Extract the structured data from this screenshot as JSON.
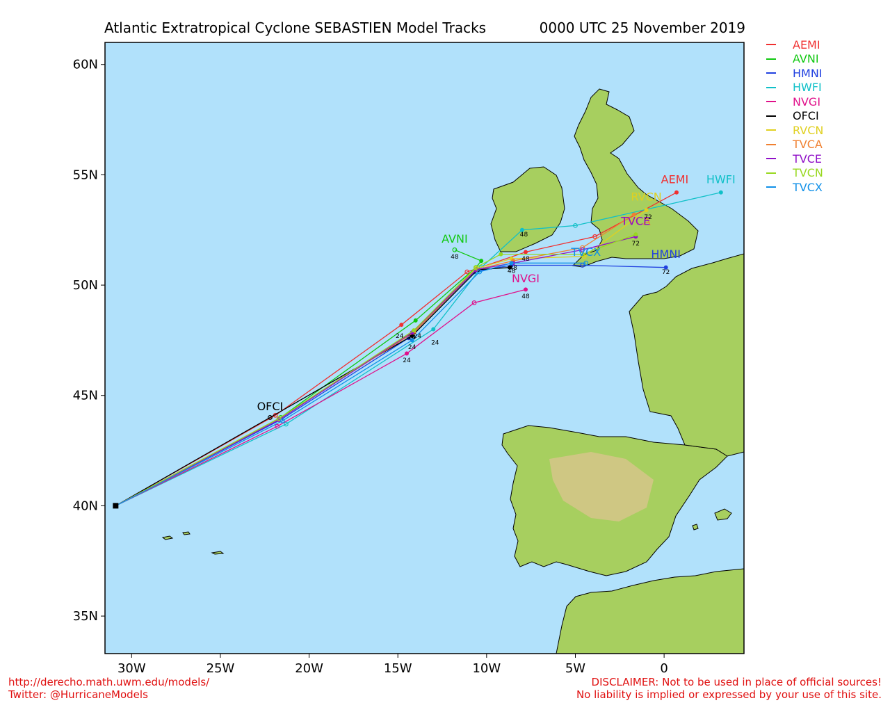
{
  "title": "Atlantic Extratropical Cyclone SEBASTIEN Model Tracks",
  "datetime": "0000 UTC 25 November 2019",
  "footer": {
    "left_line1": "http://derecho.math.uwm.edu/models/",
    "left_line2": "Twitter: @HurricaneModels",
    "right_line1": "DISCLAIMER: Not to be used in place of official sources!",
    "right_line2": "No liability is implied or expressed by your use of this site."
  },
  "colors": {
    "ocean": "#b1e1fb",
    "land": "#a7cf5f",
    "land_dark": "#7fb64a",
    "highland": "#d6c58a"
  },
  "legend": [
    {
      "label": "AEMI",
      "color": "#f03030"
    },
    {
      "label": "AVNI",
      "color": "#10c810"
    },
    {
      "label": "HMNI",
      "color": "#2040e0"
    },
    {
      "label": "HWFI",
      "color": "#10c0c8"
    },
    {
      "label": "NVGI",
      "color": "#e0108a"
    },
    {
      "label": "OFCI",
      "color": "#000000"
    },
    {
      "label": "RVCN",
      "color": "#e0d020"
    },
    {
      "label": "TVCA",
      "color": "#f08030"
    },
    {
      "label": "TVCE",
      "color": "#9010c8"
    },
    {
      "label": "TVCN",
      "color": "#98d820"
    },
    {
      "label": "TVCX",
      "color": "#1090e8"
    }
  ],
  "chart_data": {
    "type": "map",
    "xlim": [
      -31.5,
      4.5
    ],
    "ylim": [
      33.3,
      61
    ],
    "x_ticks": [
      {
        "value": -30,
        "label": "30W"
      },
      {
        "value": -25,
        "label": "25W"
      },
      {
        "value": -20,
        "label": "20W"
      },
      {
        "value": -15,
        "label": "15W"
      },
      {
        "value": -10,
        "label": "10W"
      },
      {
        "value": -5,
        "label": "5W"
      },
      {
        "value": 0,
        "label": "0"
      }
    ],
    "y_ticks": [
      {
        "value": 60,
        "label": "60N"
      },
      {
        "value": 55,
        "label": "55N"
      },
      {
        "value": 50,
        "label": "50N"
      },
      {
        "value": 45,
        "label": "45N"
      },
      {
        "value": 40,
        "label": "40N"
      },
      {
        "value": 35,
        "label": "35N"
      }
    ],
    "start": {
      "lon": -30.9,
      "lat": 40.0
    },
    "tracks": [
      {
        "name": "AEMI",
        "color": "#f03030",
        "points": [
          [
            -30.9,
            40.0
          ],
          [
            -21.9,
            44.1
          ],
          [
            -14.8,
            48.2
          ],
          [
            -11.1,
            50.6
          ],
          [
            -7.8,
            51.5
          ],
          [
            -3.9,
            52.2
          ],
          [
            0.7,
            54.2
          ]
        ],
        "label_pos": [
          0.6,
          54.5
        ]
      },
      {
        "name": "AVNI",
        "color": "#10c810",
        "points": [
          [
            -30.9,
            40.0
          ],
          [
            -21.6,
            44.0
          ],
          [
            -14.0,
            48.4
          ],
          [
            -10.6,
            50.8
          ],
          [
            -10.3,
            51.1
          ],
          [
            -11.8,
            51.6
          ]
        ],
        "label_pos": [
          -11.8,
          51.8
        ]
      },
      {
        "name": "HMNI",
        "color": "#2040e0",
        "points": [
          [
            -30.9,
            40.0
          ],
          [
            -21.6,
            43.9
          ],
          [
            -14.4,
            47.6
          ],
          [
            -10.7,
            50.6
          ],
          [
            -8.6,
            50.9
          ],
          [
            -4.6,
            50.9
          ],
          [
            0.1,
            50.8
          ]
        ],
        "label_pos": [
          0.1,
          51.1
        ]
      },
      {
        "name": "HWFI",
        "color": "#10c0c8",
        "points": [
          [
            -30.9,
            40.0
          ],
          [
            -21.3,
            43.7
          ],
          [
            -13.0,
            48.0
          ],
          [
            -10.3,
            50.8
          ],
          [
            -8.0,
            52.5
          ],
          [
            -5.0,
            52.7
          ],
          [
            3.2,
            54.2
          ]
        ],
        "label_pos": [
          3.2,
          54.5
        ]
      },
      {
        "name": "NVGI",
        "color": "#e0108a",
        "points": [
          [
            -30.9,
            40.0
          ],
          [
            -21.8,
            43.6
          ],
          [
            -14.5,
            46.9
          ],
          [
            -10.7,
            49.2
          ],
          [
            -7.8,
            49.8
          ]
        ],
        "label_pos": [
          -7.8,
          50.0
        ]
      },
      {
        "name": "OFCI",
        "color": "#000000",
        "points": [
          [
            -30.9,
            40.0
          ],
          [
            -22.2,
            44.0
          ],
          [
            -14.2,
            47.7
          ],
          [
            -10.5,
            50.7
          ],
          [
            -8.7,
            50.8
          ]
        ],
        "label_pos": [
          -22.2,
          44.2
        ]
      },
      {
        "name": "RVCN",
        "color": "#e0d020",
        "points": [
          [
            -30.9,
            40.0
          ],
          [
            -21.7,
            43.95
          ],
          [
            -14.1,
            47.9
          ],
          [
            -10.6,
            50.75
          ],
          [
            -8.6,
            51.2
          ],
          [
            -4.5,
            51.3
          ],
          [
            -1.0,
            53.4
          ]
        ],
        "label_pos": [
          -1.0,
          53.7
        ]
      },
      {
        "name": "TVCA",
        "color": "#f08030",
        "points": [
          [
            -30.9,
            40.0
          ],
          [
            -21.7,
            43.95
          ],
          [
            -14.1,
            47.85
          ],
          [
            -10.6,
            50.7
          ],
          [
            -8.5,
            51.1
          ],
          [
            -4.6,
            51.7
          ],
          [
            -1.7,
            53.2
          ]
        ],
        "label_pos": [
          -1.6,
          52.6
        ]
      },
      {
        "name": "TVCE",
        "color": "#9010c8",
        "points": [
          [
            -30.9,
            40.0
          ],
          [
            -21.7,
            43.9
          ],
          [
            -14.2,
            47.85
          ],
          [
            -10.6,
            50.7
          ],
          [
            -8.5,
            51.0
          ],
          [
            -4.6,
            51.6
          ],
          [
            -1.6,
            52.2
          ]
        ],
        "label_pos": [
          -1.6,
          52.6
        ]
      },
      {
        "name": "TVCN",
        "color": "#98d820",
        "points": [
          [
            -30.9,
            40.0
          ],
          [
            -21.7,
            43.95
          ],
          [
            -14.1,
            47.95
          ],
          [
            -10.6,
            50.8
          ],
          [
            -9.2,
            51.4
          ],
          [
            -4.6,
            51.4
          ],
          [
            -1.6,
            52.3
          ]
        ],
        "label_pos": [
          -1.6,
          52.6
        ]
      },
      {
        "name": "TVCX",
        "color": "#1090e8",
        "points": [
          [
            -30.9,
            40.0
          ],
          [
            -21.5,
            43.85
          ],
          [
            -14.2,
            47.5
          ],
          [
            -10.4,
            50.6
          ],
          [
            -8.6,
            51.0
          ],
          [
            -4.4,
            51.0
          ]
        ],
        "label_pos": [
          -4.4,
          51.2
        ]
      }
    ],
    "hour_labels": [
      {
        "text": "24",
        "lon": -14.9,
        "lat": 47.6
      },
      {
        "text": "24",
        "lon": -14.2,
        "lat": 47.55
      },
      {
        "text": "24",
        "lon": -13.9,
        "lat": 47.6
      },
      {
        "text": "24",
        "lon": -14.2,
        "lat": 47.1
      },
      {
        "text": "24",
        "lon": -12.9,
        "lat": 47.3
      },
      {
        "text": "24",
        "lon": -14.5,
        "lat": 46.5
      },
      {
        "text": "48",
        "lon": -11.8,
        "lat": 51.2
      },
      {
        "text": "48",
        "lon": -7.9,
        "lat": 52.2
      },
      {
        "text": "48",
        "lon": -7.8,
        "lat": 51.1
      },
      {
        "text": "48",
        "lon": -8.5,
        "lat": 50.7
      },
      {
        "text": "48",
        "lon": -8.6,
        "lat": 50.55
      },
      {
        "text": "48",
        "lon": -7.8,
        "lat": 49.4
      },
      {
        "text": "72",
        "lon": -0.9,
        "lat": 53.0
      },
      {
        "text": "72",
        "lon": -1.6,
        "lat": 51.8
      },
      {
        "text": "72",
        "lon": 0.1,
        "lat": 50.5
      }
    ]
  }
}
